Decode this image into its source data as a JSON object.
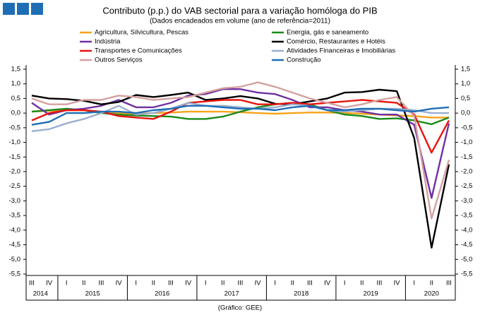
{
  "chart_data": {
    "type": "line",
    "title": "Contributo (p.p.) do VAB sectorial para a variação homóloga do PIB",
    "subtitle": "(Dados encadeados em volume (ano de referência=2011)",
    "caption": "(Gráfico: GEE)",
    "categories": [
      "III",
      "IV",
      "I",
      "II",
      "III",
      "IV",
      "I",
      "II",
      "III",
      "IV",
      "I",
      "II",
      "III",
      "IV",
      "I",
      "II",
      "III",
      "IV",
      "I",
      "II",
      "III",
      "IV",
      "I",
      "II",
      "III"
    ],
    "years": [
      "2014",
      "2015",
      "2016",
      "2017",
      "2018",
      "2019",
      "2020"
    ],
    "ylim": [
      -5.5,
      1.5
    ],
    "yticks": [
      {
        "value": 1.5,
        "label": "1,5"
      },
      {
        "value": 1.0,
        "label": "1,0"
      },
      {
        "value": 0.5,
        "label": "0,5"
      },
      {
        "value": 0,
        "label": "0,0"
      },
      {
        "value": -0.5,
        "label": "-0,5"
      },
      {
        "value": -1.0,
        "label": "-1,0"
      },
      {
        "value": -1.5,
        "label": "-1,5"
      },
      {
        "value": -2.0,
        "label": "-2,0"
      },
      {
        "value": -2.5,
        "label": "-2,5"
      },
      {
        "value": -3.0,
        "label": "-3,0"
      },
      {
        "value": -3.5,
        "label": "-3,5"
      },
      {
        "value": -4.0,
        "label": "-4,0"
      },
      {
        "value": -4.5,
        "label": "-4,5"
      },
      {
        "value": -5.0,
        "label": "-5,0"
      },
      {
        "value": -5.5,
        "label": "-5,5"
      }
    ],
    "grid": false,
    "series": [
      {
        "name": "Agricultura, Silvicultura, Pescas",
        "color": "#f5a31a",
        "values": [
          0.05,
          0.08,
          0.1,
          0.1,
          0.05,
          0.0,
          -0.02,
          0.0,
          0.02,
          0.05,
          0.05,
          0.05,
          0.03,
          0.0,
          -0.02,
          0.0,
          0.02,
          0.02,
          0.0,
          -0.02,
          -0.05,
          -0.08,
          -0.1,
          -0.15,
          -0.15
        ]
      },
      {
        "name": "Energia, gás e saneamento",
        "color": "#1a8a1a",
        "values": [
          0.05,
          0.1,
          0.15,
          0.1,
          0.0,
          -0.05,
          -0.08,
          -0.1,
          -0.12,
          -0.2,
          -0.2,
          -0.12,
          0.05,
          0.2,
          0.3,
          0.35,
          0.3,
          0.1,
          -0.05,
          -0.1,
          -0.2,
          -0.18,
          -0.25,
          -0.38,
          -0.15
        ]
      },
      {
        "name": "Indústria",
        "color": "#7030a0",
        "values": [
          0.35,
          -0.05,
          0.1,
          0.15,
          0.25,
          0.45,
          0.2,
          0.2,
          0.35,
          0.6,
          0.65,
          0.82,
          0.82,
          0.7,
          0.65,
          0.45,
          0.2,
          0.2,
          0.1,
          0.05,
          -0.05,
          -0.05,
          -0.4,
          -2.9,
          -0.35
        ]
      },
      {
        "name": "Comércio, Restaurantes e Hotéis",
        "color": "#000000",
        "values": [
          0.6,
          0.5,
          0.48,
          0.42,
          0.3,
          0.38,
          0.62,
          0.55,
          0.62,
          0.7,
          0.45,
          0.5,
          0.58,
          0.5,
          0.32,
          0.3,
          0.4,
          0.5,
          0.7,
          0.72,
          0.8,
          0.75,
          -0.85,
          -4.6,
          -1.75
        ]
      },
      {
        "name": "Transportes e Comunicações",
        "color": "#e8140f",
        "values": [
          -0.25,
          0.0,
          0.1,
          0.1,
          0.05,
          -0.1,
          -0.15,
          -0.2,
          0.05,
          0.35,
          0.4,
          0.45,
          0.45,
          0.3,
          0.3,
          0.35,
          0.3,
          0.35,
          0.4,
          0.45,
          0.4,
          0.35,
          -0.05,
          -1.35,
          -0.25
        ]
      },
      {
        "name": "Atividades Financeiras e Imobiliárias",
        "color": "#9aaed0",
        "values": [
          -0.62,
          -0.55,
          -0.35,
          -0.2,
          0.0,
          0.25,
          -0.05,
          0.0,
          0.15,
          0.35,
          0.25,
          0.25,
          0.2,
          0.15,
          0.2,
          0.3,
          0.25,
          0.1,
          0.05,
          0.1,
          0.15,
          0.15,
          0.1,
          0.0,
          0.0
        ]
      },
      {
        "name": "Outros Serviços",
        "color": "#d4a0a0",
        "values": [
          0.5,
          0.3,
          0.3,
          0.45,
          0.45,
          0.6,
          0.55,
          0.45,
          0.5,
          0.55,
          0.7,
          0.85,
          0.9,
          1.05,
          0.9,
          0.7,
          0.5,
          0.35,
          0.2,
          0.3,
          0.45,
          0.55,
          -0.1,
          -3.6,
          -1.6
        ]
      },
      {
        "name": "Construção",
        "color": "#1f6eb5",
        "values": [
          -0.4,
          -0.3,
          0.0,
          0.0,
          0.05,
          0.05,
          0.0,
          0.1,
          0.15,
          0.25,
          0.25,
          0.2,
          0.15,
          0.15,
          0.1,
          0.2,
          0.25,
          0.1,
          0.1,
          0.15,
          0.15,
          0.1,
          0.05,
          0.15,
          0.2
        ]
      }
    ]
  }
}
